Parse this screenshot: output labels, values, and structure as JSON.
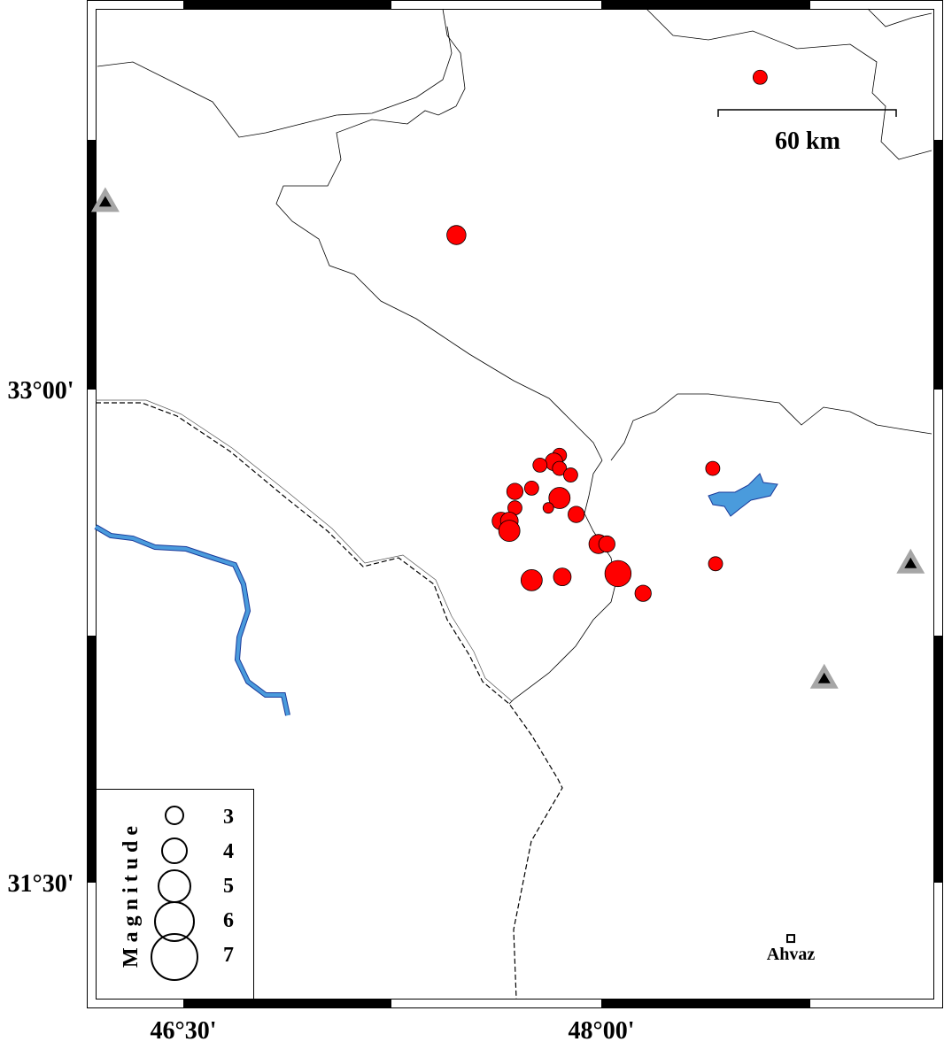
{
  "map": {
    "lon_range": [
      46.17,
      49.18
    ],
    "lat_range": [
      31.17,
      34.19
    ],
    "x_tick_labels": [
      {
        "lon": 46.5,
        "text": "46°30'"
      },
      {
        "lon": 48.0,
        "text": "48°00'"
      }
    ],
    "y_tick_labels": [
      {
        "lat": 33.0,
        "text": "33°00'"
      },
      {
        "lat": 31.5,
        "text": "31°30'"
      }
    ],
    "colors": {
      "event": "#ff0000",
      "river": "#4a9bdc",
      "station_outer": "#a6a6a6",
      "station_inner": "#000000"
    }
  },
  "scale_bar": {
    "label": "60 km"
  },
  "legend": {
    "title": "Magnitude",
    "entries": [
      {
        "mag": 3,
        "text": "3"
      },
      {
        "mag": 4,
        "text": "4"
      },
      {
        "mag": 5,
        "text": "5"
      },
      {
        "mag": 6,
        "text": "6"
      },
      {
        "mag": 7,
        "text": "7"
      }
    ]
  },
  "city": {
    "name": "Ahvaz",
    "lon": 48.68,
    "lat": 31.33
  },
  "stations": [
    {
      "lon": 46.22,
      "lat": 33.57
    },
    {
      "lon": 49.11,
      "lat": 32.47
    },
    {
      "lon": 48.8,
      "lat": 32.12
    }
  ],
  "events": [
    {
      "lon": 48.57,
      "lat": 33.95,
      "mag": 2.5
    },
    {
      "lon": 47.48,
      "lat": 33.47,
      "mag": 3.2
    },
    {
      "lon": 48.4,
      "lat": 32.76,
      "mag": 2.5
    },
    {
      "lon": 48.41,
      "lat": 32.47,
      "mag": 2.5
    },
    {
      "lon": 47.85,
      "lat": 32.8,
      "mag": 2.5
    },
    {
      "lon": 47.83,
      "lat": 32.78,
      "mag": 3.0
    },
    {
      "lon": 47.85,
      "lat": 32.76,
      "mag": 2.5
    },
    {
      "lon": 47.78,
      "lat": 32.77,
      "mag": 2.5
    },
    {
      "lon": 47.89,
      "lat": 32.74,
      "mag": 2.5
    },
    {
      "lon": 47.75,
      "lat": 32.7,
      "mag": 2.5
    },
    {
      "lon": 47.69,
      "lat": 32.69,
      "mag": 2.8
    },
    {
      "lon": 47.85,
      "lat": 32.67,
      "mag": 3.5
    },
    {
      "lon": 47.81,
      "lat": 32.64,
      "mag": 2.0
    },
    {
      "lon": 47.69,
      "lat": 32.64,
      "mag": 2.5
    },
    {
      "lon": 47.91,
      "lat": 32.62,
      "mag": 2.8
    },
    {
      "lon": 47.64,
      "lat": 32.6,
      "mag": 3.0
    },
    {
      "lon": 47.67,
      "lat": 32.6,
      "mag": 3.0
    },
    {
      "lon": 47.67,
      "lat": 32.57,
      "mag": 3.5
    },
    {
      "lon": 47.99,
      "lat": 32.53,
      "mag": 3.2
    },
    {
      "lon": 48.02,
      "lat": 32.53,
      "mag": 2.8
    },
    {
      "lon": 47.75,
      "lat": 32.42,
      "mag": 3.5
    },
    {
      "lon": 47.86,
      "lat": 32.43,
      "mag": 3.0
    },
    {
      "lon": 48.06,
      "lat": 32.44,
      "mag": 4.2
    },
    {
      "lon": 48.15,
      "lat": 32.38,
      "mag": 2.8
    }
  ]
}
